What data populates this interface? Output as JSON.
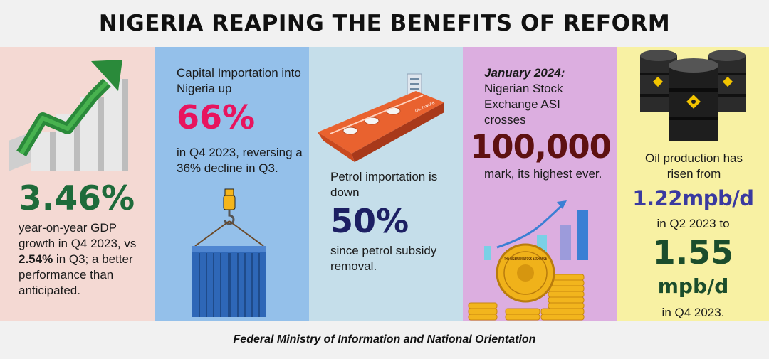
{
  "title": "NIGERIA REAPING THE BENEFITS OF REFORM",
  "gdp": {
    "value": "3.46%",
    "text_1": "year-on-year GDP growth in Q4 2023, vs ",
    "prev_value": "2.54%",
    "text_2": " in Q3; a better performance than anticipated."
  },
  "capital": {
    "intro": "Capital Importation into Nigeria up",
    "value": "66%",
    "text": "in Q4 2023, reversing a 36% decline in Q3."
  },
  "petrol": {
    "intro": "Petrol importation is down",
    "value": "50%",
    "text": "since petrol subsidy removal.",
    "ship_label": "OIL TANKER"
  },
  "stock": {
    "date": "January 2024:",
    "intro": "Nigerian Stock Exchange ASI crosses",
    "value": "100,000",
    "text": "mark, its highest ever.",
    "coin_label": "THE NIGERIAN STOCK EXCHANGE"
  },
  "oil": {
    "intro": "Oil production has risen from",
    "from_value": "1.22mpb/d",
    "middle": "in Q2 2023 to",
    "to_value": "1.55",
    "to_unit": "mpb/d",
    "end": "in Q4 2023."
  },
  "footer": "Federal Ministry of Information and National Orientation",
  "colors": {
    "gdp_green": "#1e6b3a",
    "capital_pink": "#e8145e",
    "petrol_navy": "#1c1f63",
    "stock_maroon": "#5e1111",
    "oil_purple": "#3a3aa0",
    "oil_green": "#1b4d2c"
  }
}
